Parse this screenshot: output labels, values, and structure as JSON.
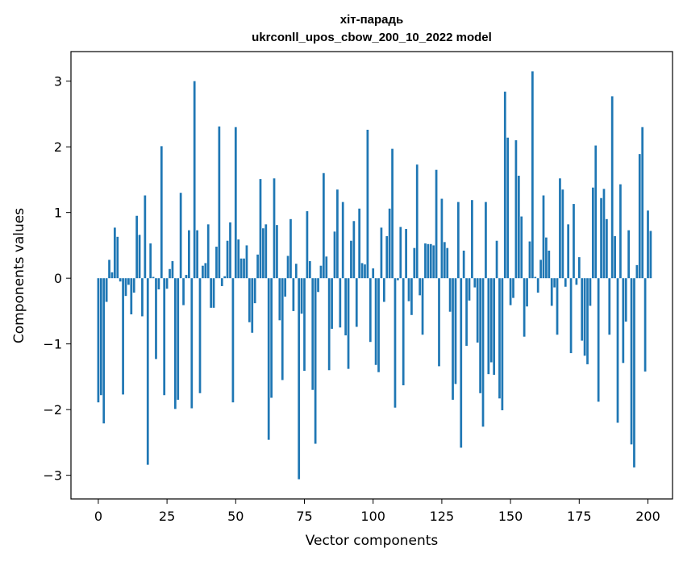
{
  "chart_data": {
    "type": "bar",
    "title_line1": "хіт-парадь",
    "title_line2": "ukrconll_upos_cbow_200_10_2022 model",
    "xlabel": "Vector components",
    "ylabel": "Components values",
    "xlim": [
      -9.95,
      208.95
    ],
    "ylim": [
      -3.36,
      3.45
    ],
    "xticks": [
      0,
      25,
      50,
      75,
      100,
      125,
      150,
      175,
      200
    ],
    "xtick_labels": [
      "0",
      "25",
      "50",
      "75",
      "100",
      "125",
      "150",
      "175",
      "200"
    ],
    "yticks": [
      -3,
      -2,
      -1,
      0,
      1,
      2,
      3
    ],
    "ytick_labels": [
      "−3",
      "−2",
      "−1",
      "0",
      "1",
      "2",
      "3"
    ],
    "bar_color": "#1f77b4",
    "grid": false,
    "values": [
      -1.89,
      -1.78,
      -2.21,
      -0.36,
      0.28,
      0.09,
      0.77,
      0.63,
      -0.05,
      -1.77,
      -0.27,
      -0.1,
      -0.55,
      -0.22,
      0.95,
      0.66,
      -0.58,
      1.26,
      -2.84,
      0.53,
      0.02,
      -1.23,
      -0.17,
      2.01,
      -1.78,
      -0.16,
      0.14,
      0.26,
      -1.99,
      -1.85,
      1.3,
      -0.41,
      0.05,
      0.73,
      -1.98,
      3.0,
      0.73,
      -1.75,
      0.19,
      0.23,
      0.82,
      -0.45,
      -0.45,
      0.48,
      2.31,
      -0.12,
      0.03,
      0.57,
      0.85,
      -1.89,
      2.3,
      0.59,
      0.3,
      0.3,
      0.5,
      -0.67,
      -0.83,
      -0.38,
      0.36,
      1.51,
      0.76,
      0.82,
      -2.46,
      -1.82,
      1.52,
      0.81,
      -0.64,
      -1.55,
      -0.28,
      0.34,
      0.9,
      -0.5,
      0.22,
      -3.06,
      -0.54,
      -1.41,
      1.02,
      0.26,
      -1.7,
      -2.52,
      -0.21,
      0.19,
      1.6,
      0.33,
      -1.4,
      -0.77,
      0.71,
      1.35,
      -0.75,
      1.16,
      -0.87,
      -1.38,
      0.57,
      0.87,
      -0.74,
      1.06,
      0.23,
      0.21,
      2.26,
      -0.97,
      0.15,
      -1.32,
      -1.43,
      0.77,
      -0.36,
      0.64,
      1.06,
      1.97,
      -1.97,
      -0.03,
      0.78,
      -1.63,
      0.75,
      -0.35,
      -0.56,
      0.46,
      1.73,
      -0.26,
      -0.86,
      0.53,
      0.52,
      0.52,
      0.5,
      1.65,
      -1.34,
      1.21,
      0.55,
      0.46,
      -0.51,
      -1.85,
      -1.61,
      1.16,
      -2.58,
      0.42,
      -1.03,
      -0.34,
      1.19,
      -0.14,
      -0.98,
      -1.75,
      -2.26,
      1.16,
      -1.46,
      -1.28,
      -1.47,
      0.57,
      -1.83,
      -2.01,
      2.84,
      2.14,
      -0.41,
      -0.3,
      2.1,
      1.56,
      0.94,
      -0.89,
      -0.43,
      0.56,
      3.15,
      0.02,
      -0.22,
      0.28,
      1.26,
      0.62,
      0.42,
      -0.42,
      -0.14,
      -0.86,
      1.52,
      1.35,
      -0.13,
      0.82,
      -1.14,
      1.13,
      -0.1,
      0.32,
      -0.95,
      -1.18,
      -1.31,
      -0.42,
      1.38,
      2.02,
      -1.88,
      1.22,
      1.36,
      0.9,
      -0.86,
      2.77,
      0.64,
      -2.2,
      1.43,
      -1.29,
      -0.66,
      0.73,
      -2.53,
      -2.88,
      0.2,
      1.89,
      2.3,
      -1.42,
      1.03,
      0.72
    ]
  }
}
